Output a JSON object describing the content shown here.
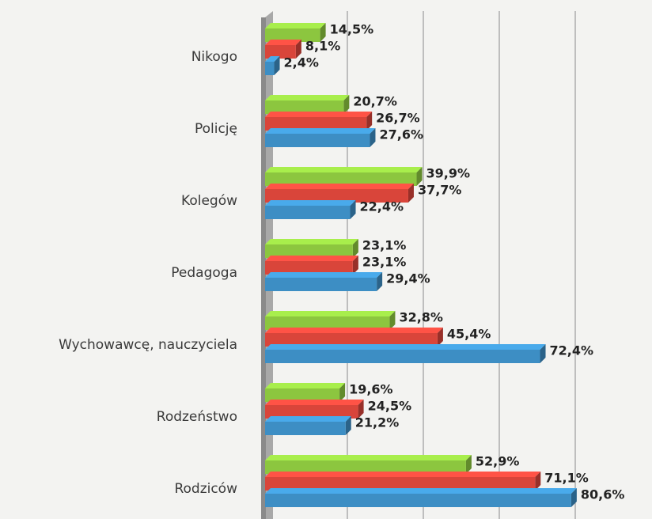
{
  "chart_data": {
    "type": "bar",
    "orientation": "horizontal",
    "categories": [
      "Nikogo",
      "Policję",
      "Kolegów",
      "Pedagoga",
      "Wychowawcę, nauczyciela",
      "Rodzeństwo",
      "Rodziców"
    ],
    "series": [
      {
        "color": "#8cc63f",
        "values": [
          14.5,
          20.7,
          39.9,
          23.1,
          32.8,
          19.6,
          52.9
        ],
        "value_labels": [
          "14,5%",
          "20,7%",
          "39,9%",
          "23,1%",
          "32,8%",
          "19,6%",
          "52,9%"
        ]
      },
      {
        "color": "#d9453a",
        "values": [
          8.1,
          26.7,
          37.7,
          23.1,
          45.4,
          24.5,
          71.1
        ],
        "value_labels": [
          "8,1%",
          "26,7%",
          "37,7%",
          "23,1%",
          "45,4%",
          "24,5%",
          "71,1%"
        ]
      },
      {
        "color": "#3d8ec4",
        "values": [
          2.4,
          27.6,
          22.4,
          29.4,
          72.4,
          21.2,
          80.6
        ],
        "value_labels": [
          "2,4%",
          "27,6%",
          "22,4%",
          "29,4%",
          "72,4%",
          "21,2%",
          "80,6%"
        ]
      }
    ],
    "xlim": [
      0,
      100
    ],
    "xticks": [
      0,
      20,
      40,
      60,
      80
    ],
    "grid": true
  }
}
